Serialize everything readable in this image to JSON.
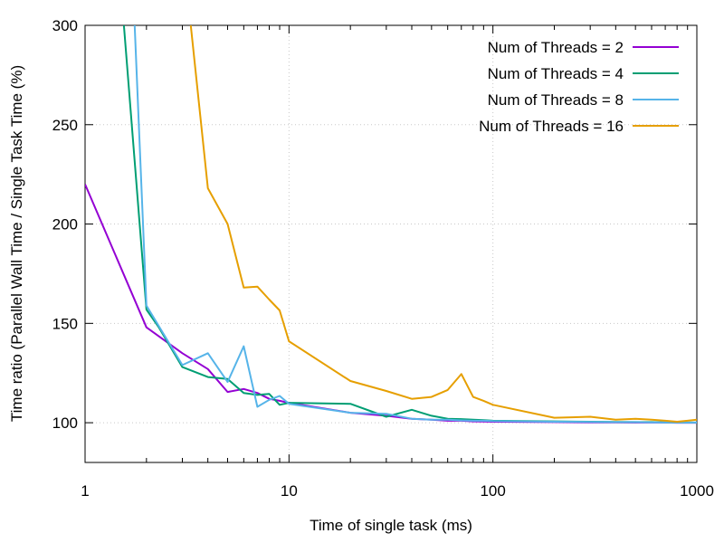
{
  "chart_data": {
    "type": "line",
    "xlabel": "Time of single task (ms)",
    "ylabel": "Time ratio (Parallel Wall Time / Single Task Time (%)",
    "xscale": "log",
    "xlim": [
      1,
      1000
    ],
    "ylim": [
      80,
      300
    ],
    "xticks": [
      1,
      10,
      100,
      1000
    ],
    "xtick_labels": [
      "1",
      "10",
      "100",
      "1000"
    ],
    "yticks": [
      100,
      150,
      200,
      250,
      300
    ],
    "ytick_labels": [
      "100",
      "150",
      "200",
      "250",
      "300"
    ],
    "grid": true,
    "legend_position": "top-right",
    "series": [
      {
        "name": "Num of Threads = 2",
        "color": "#9400d3",
        "x": [
          1,
          2,
          3,
          4,
          5,
          6,
          7,
          8,
          9,
          10,
          20,
          30,
          40,
          50,
          60,
          70,
          80,
          90,
          100,
          200,
          300,
          400,
          500,
          600,
          700,
          800,
          900,
          1000
        ],
        "y": [
          220,
          148,
          135,
          127,
          115.5,
          117,
          115,
          112,
          111,
          110,
          105,
          103.5,
          102,
          101.5,
          101,
          101,
          100.7,
          100.6,
          100.5,
          100.3,
          100.2,
          100.2,
          100.1,
          100.1,
          100.1,
          100,
          100,
          100
        ]
      },
      {
        "name": "Num of Threads = 4",
        "color": "#009e73",
        "x": [
          1.55,
          2,
          2.3,
          3,
          4,
          5,
          6,
          7,
          8,
          9,
          10,
          20,
          30,
          40,
          50,
          60,
          70,
          80,
          90,
          100,
          200,
          300,
          400,
          500,
          600,
          700,
          800,
          900,
          1000
        ],
        "y": [
          300,
          157,
          148,
          128,
          123,
          122,
          115,
          114,
          114.5,
          109,
          110,
          109.5,
          103,
          106.5,
          103.5,
          102,
          101.8,
          101.5,
          101.3,
          101,
          100.7,
          100.5,
          100.4,
          100.3,
          100.3,
          100.2,
          100.2,
          100.1,
          100.1
        ]
      },
      {
        "name": "Num of Threads = 8",
        "color": "#56b4e9",
        "x": [
          1.75,
          2,
          3,
          4,
          5,
          6,
          7,
          8,
          9,
          10,
          20,
          30,
          40,
          50,
          60,
          70,
          80,
          90,
          100,
          200,
          300,
          400,
          500,
          600,
          700,
          800,
          900,
          1000
        ],
        "y": [
          300,
          159,
          129,
          135,
          120.5,
          138.5,
          108,
          111.5,
          113.5,
          109.5,
          105,
          104.5,
          102,
          101.5,
          101.5,
          101.2,
          101,
          101,
          100.8,
          100.5,
          100.4,
          100.3,
          100.3,
          100.2,
          100.2,
          100.1,
          100.1,
          100.1
        ]
      },
      {
        "name": "Num of Threads = 16",
        "color": "#e69f00",
        "x": [
          3.3,
          4,
          5,
          6,
          7,
          8,
          9,
          10,
          20,
          30,
          40,
          50,
          60,
          70,
          80,
          90,
          100,
          200,
          300,
          400,
          500,
          600,
          700,
          800,
          900,
          1000
        ],
        "y": [
          300,
          218,
          200,
          168,
          168.5,
          162,
          156.5,
          141,
          121,
          116,
          112,
          113,
          116.5,
          124.5,
          113,
          111,
          109,
          102.5,
          103,
          101.5,
          102,
          101.5,
          101,
          100.5,
          101,
          101.5
        ]
      }
    ]
  }
}
